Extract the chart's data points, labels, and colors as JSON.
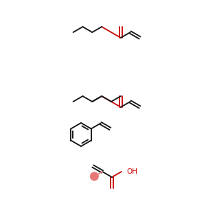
{
  "bg_color": "#ffffff",
  "bond_color": "#1a1a1a",
  "red_color": "#cc1111",
  "pink_color": "#e87878",
  "lw": 1.4,
  "fig_size": [
    3.0,
    3.0
  ],
  "dpi": 100,
  "s": 16
}
